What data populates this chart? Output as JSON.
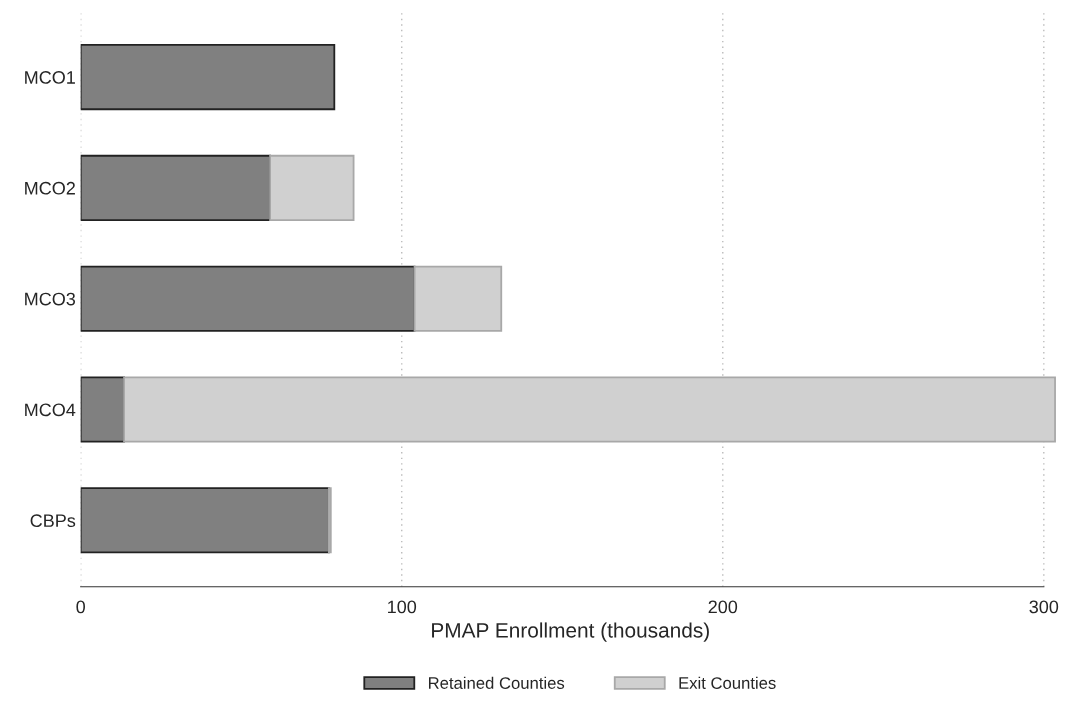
{
  "chart_data": {
    "type": "bar",
    "orientation": "horizontal",
    "stacked": true,
    "categories": [
      "MCO1",
      "MCO2",
      "MCO3",
      "MCO4",
      "CBPs"
    ],
    "series": [
      {
        "name": "Retained Counties",
        "color": "#808080",
        "values": [
          79,
          59,
          104,
          13.5,
          77.3
        ]
      },
      {
        "name": "Exit Counties",
        "color": "#d0d0d0",
        "values": [
          null,
          26,
          27,
          290,
          0.6
        ]
      }
    ],
    "xlabel": "PMAP Enrollment (thousands)",
    "xlim": [
      0,
      305
    ],
    "xticks": [
      0,
      100,
      200,
      300
    ],
    "grid": "x",
    "legend": "bottom"
  }
}
